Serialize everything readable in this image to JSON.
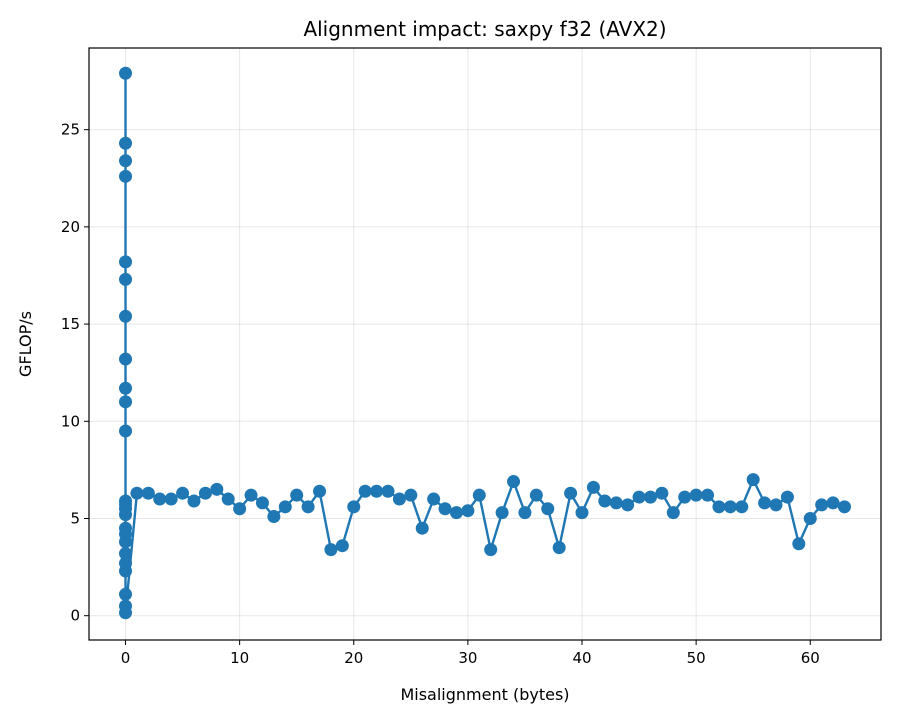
{
  "chart_data": {
    "type": "line",
    "title": "Alignment impact: saxpy f32 (AVX2)",
    "xlabel": "Misalignment (bytes)",
    "ylabel": "GFLOP/s",
    "xlim": [
      -3.2,
      66.2
    ],
    "ylim": [
      -1.25,
      29.2
    ],
    "xticks": [
      0,
      10,
      20,
      30,
      40,
      50,
      60
    ],
    "yticks": [
      0,
      5,
      10,
      15,
      20,
      25
    ],
    "grid": true,
    "legend": "none",
    "series": [
      {
        "color": "#1f77b4",
        "marker": "circle",
        "x": [
          0,
          0,
          0,
          0,
          0,
          0,
          0,
          0,
          0,
          0,
          0,
          0,
          0,
          0,
          0,
          0,
          0,
          0,
          0,
          0,
          0,
          0,
          0,
          0,
          1,
          2,
          3,
          4,
          5,
          6,
          7,
          8,
          9,
          10,
          11,
          12,
          13,
          14,
          15,
          16,
          17,
          18,
          19,
          20,
          21,
          22,
          23,
          24,
          25,
          26,
          27,
          28,
          29,
          30,
          31,
          32,
          33,
          34,
          35,
          36,
          37,
          38,
          39,
          40,
          41,
          42,
          43,
          44,
          45,
          46,
          47,
          48,
          49,
          50,
          51,
          52,
          53,
          54,
          55,
          56,
          57,
          58,
          59,
          60,
          61,
          62,
          63
        ],
        "y": [
          27.9,
          24.3,
          23.4,
          22.6,
          18.2,
          17.3,
          15.4,
          13.2,
          11.7,
          11.0,
          9.5,
          5.9,
          5.7,
          5.5,
          5.2,
          4.5,
          4.2,
          3.8,
          3.2,
          2.7,
          2.3,
          1.1,
          0.5,
          0.15,
          6.3,
          6.3,
          6.0,
          6.0,
          6.3,
          5.9,
          6.3,
          6.5,
          6.0,
          5.5,
          6.2,
          5.8,
          5.1,
          5.6,
          6.2,
          5.6,
          6.4,
          3.4,
          3.6,
          5.6,
          6.4,
          6.4,
          6.4,
          6.0,
          6.2,
          4.5,
          6.0,
          5.5,
          5.3,
          5.4,
          6.2,
          3.4,
          5.3,
          6.9,
          5.3,
          6.2,
          5.5,
          3.5,
          6.3,
          5.3,
          6.6,
          5.9,
          5.8,
          5.7,
          6.1,
          6.1,
          6.3,
          5.3,
          6.1,
          6.2,
          6.2,
          5.6,
          5.6,
          5.6,
          7.0,
          5.8,
          5.7,
          6.1,
          3.7,
          5.0,
          5.7,
          5.8,
          5.6
        ]
      }
    ]
  }
}
